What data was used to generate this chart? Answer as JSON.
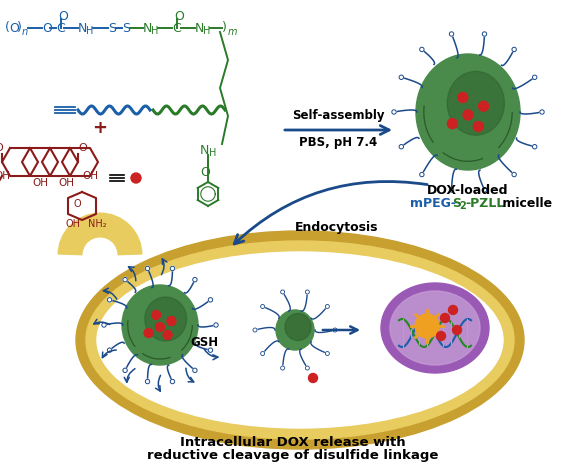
{
  "bg_color": "#ffffff",
  "polymer_color_blue": "#1a5fa8",
  "polymer_color_green": "#2a7a2a",
  "dox_color": "#8b1a1a",
  "micelle_green_light": "#4a8a4a",
  "micelle_green_dark": "#2a5a2a",
  "endosome_gold_outer": "#c8a030",
  "endosome_gold_inner": "#e8cc60",
  "nucleus_purple": "#9b59b6",
  "nucleus_purple_light": "#c39bd3",
  "dox_dot_color": "#cc2222",
  "arrow_color": "#1a4a8a",
  "self_assembly_text_line1": "Self-assembly",
  "self_assembly_text_line2": "PBS, pH 7.4",
  "endocytosis_text": "Endocytosis",
  "gsh_text": "GSH",
  "bottom_text1": "Intracellular DOX release with",
  "bottom_text2": "reductive cleavage of disulfide linkage",
  "dox_loaded_label": "DOX-loaded",
  "micelle_label": " micelle",
  "figsize": [
    5.86,
    4.63
  ],
  "dpi": 100
}
